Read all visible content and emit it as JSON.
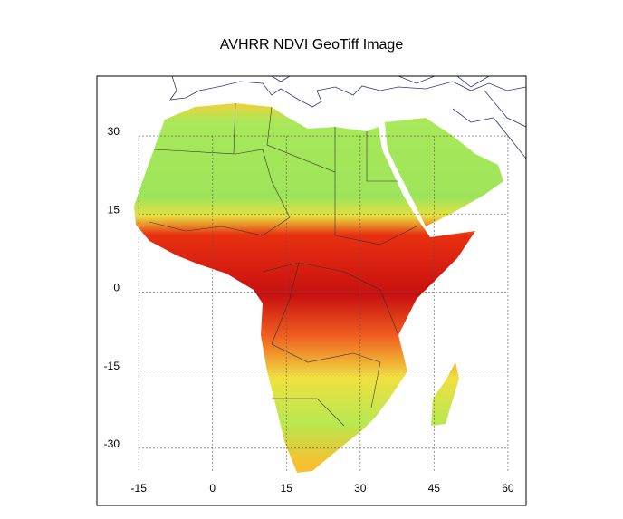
{
  "title": "AVHRR NDVI GeoTiff Image",
  "map": {
    "xlim": [
      -23.5,
      63.7
    ],
    "ylim": [
      -41,
      41.5
    ],
    "xticks": [
      -15,
      0,
      15,
      30,
      45,
      60
    ],
    "yticks": [
      -30,
      -15,
      0,
      15,
      30
    ],
    "grid": true
  }
}
